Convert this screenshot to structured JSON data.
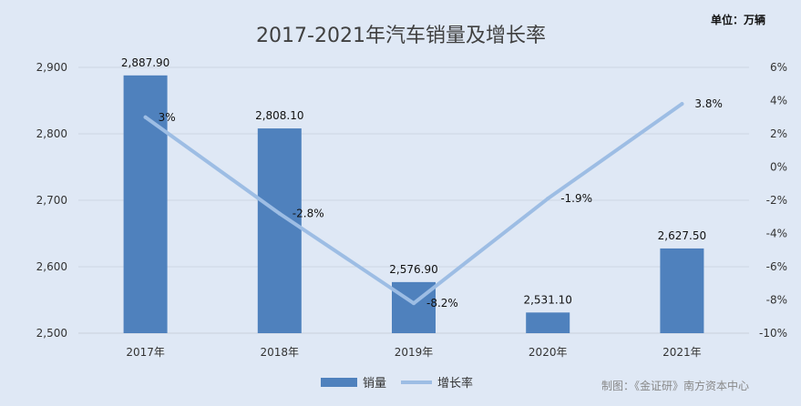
{
  "chart_data": {
    "type": "bar",
    "title": "2017-2021年汽车销量及增长率",
    "unit_label": "单位：万辆",
    "source": "制图：《金证研》南方资本中心",
    "categories": [
      "2017年",
      "2018年",
      "2019年",
      "2020年",
      "2021年"
    ],
    "series": [
      {
        "name": "销量",
        "type": "bar",
        "axis": "left",
        "color": "#4f81bd",
        "values": [
          2887.9,
          2808.1,
          2576.9,
          2531.1,
          2627.5
        ],
        "labels": [
          "2,887.90",
          "2,808.10",
          "2,576.90",
          "2,531.10",
          "2,627.50"
        ]
      },
      {
        "name": "增长率",
        "type": "line",
        "axis": "right",
        "color": "#9dbde4",
        "values": [
          3.0,
          -2.8,
          -8.2,
          -1.9,
          3.8
        ],
        "labels": [
          "3%",
          "-2.8%",
          "-8.2%",
          "-1.9%",
          "3.8%"
        ]
      }
    ],
    "y_left": {
      "ylim": [
        2500,
        2900
      ],
      "ticks": [
        2500,
        2600,
        2700,
        2800,
        2900
      ],
      "tick_labels": [
        "2,500",
        "2,600",
        "2,700",
        "2,800",
        "2,900"
      ]
    },
    "y_right": {
      "ylim": [
        -10,
        6
      ],
      "ticks": [
        -10,
        -8,
        -6,
        -4,
        -2,
        0,
        2,
        4,
        6
      ],
      "tick_labels": [
        "-10%",
        "-8%",
        "-6%",
        "-4%",
        "-2%",
        "0%",
        "2%",
        "4%",
        "6%"
      ]
    },
    "grid": true,
    "legend_position": "bottom"
  }
}
